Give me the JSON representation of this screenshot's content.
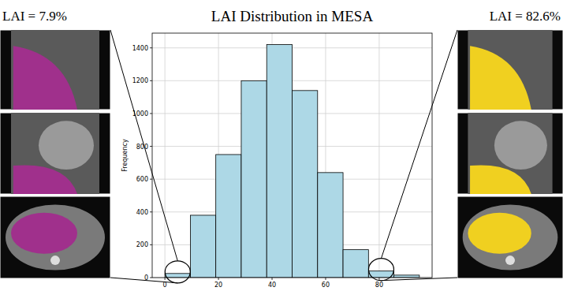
{
  "chart_data": {
    "type": "histogram",
    "title": "LAI Distribution in MESA",
    "y_label": "Frequency",
    "bins": [
      0,
      9.5,
      19,
      28.5,
      38,
      47.5,
      57,
      66.5,
      76,
      85.5,
      95
    ],
    "values": [
      25,
      380,
      750,
      1200,
      1420,
      1140,
      640,
      170,
      40,
      15
    ],
    "color": "#add8e6",
    "xlim": [
      -4.75,
      99.75
    ],
    "xticks": [
      0,
      20,
      40,
      60,
      80
    ],
    "ylim": [
      0,
      1490
    ],
    "yticks": [
      0,
      200,
      400,
      600,
      800,
      1000,
      1200,
      1400
    ],
    "grid": true,
    "annotations": [
      "LAI = 7.9%",
      "LAI = 82.6%"
    ]
  }
}
